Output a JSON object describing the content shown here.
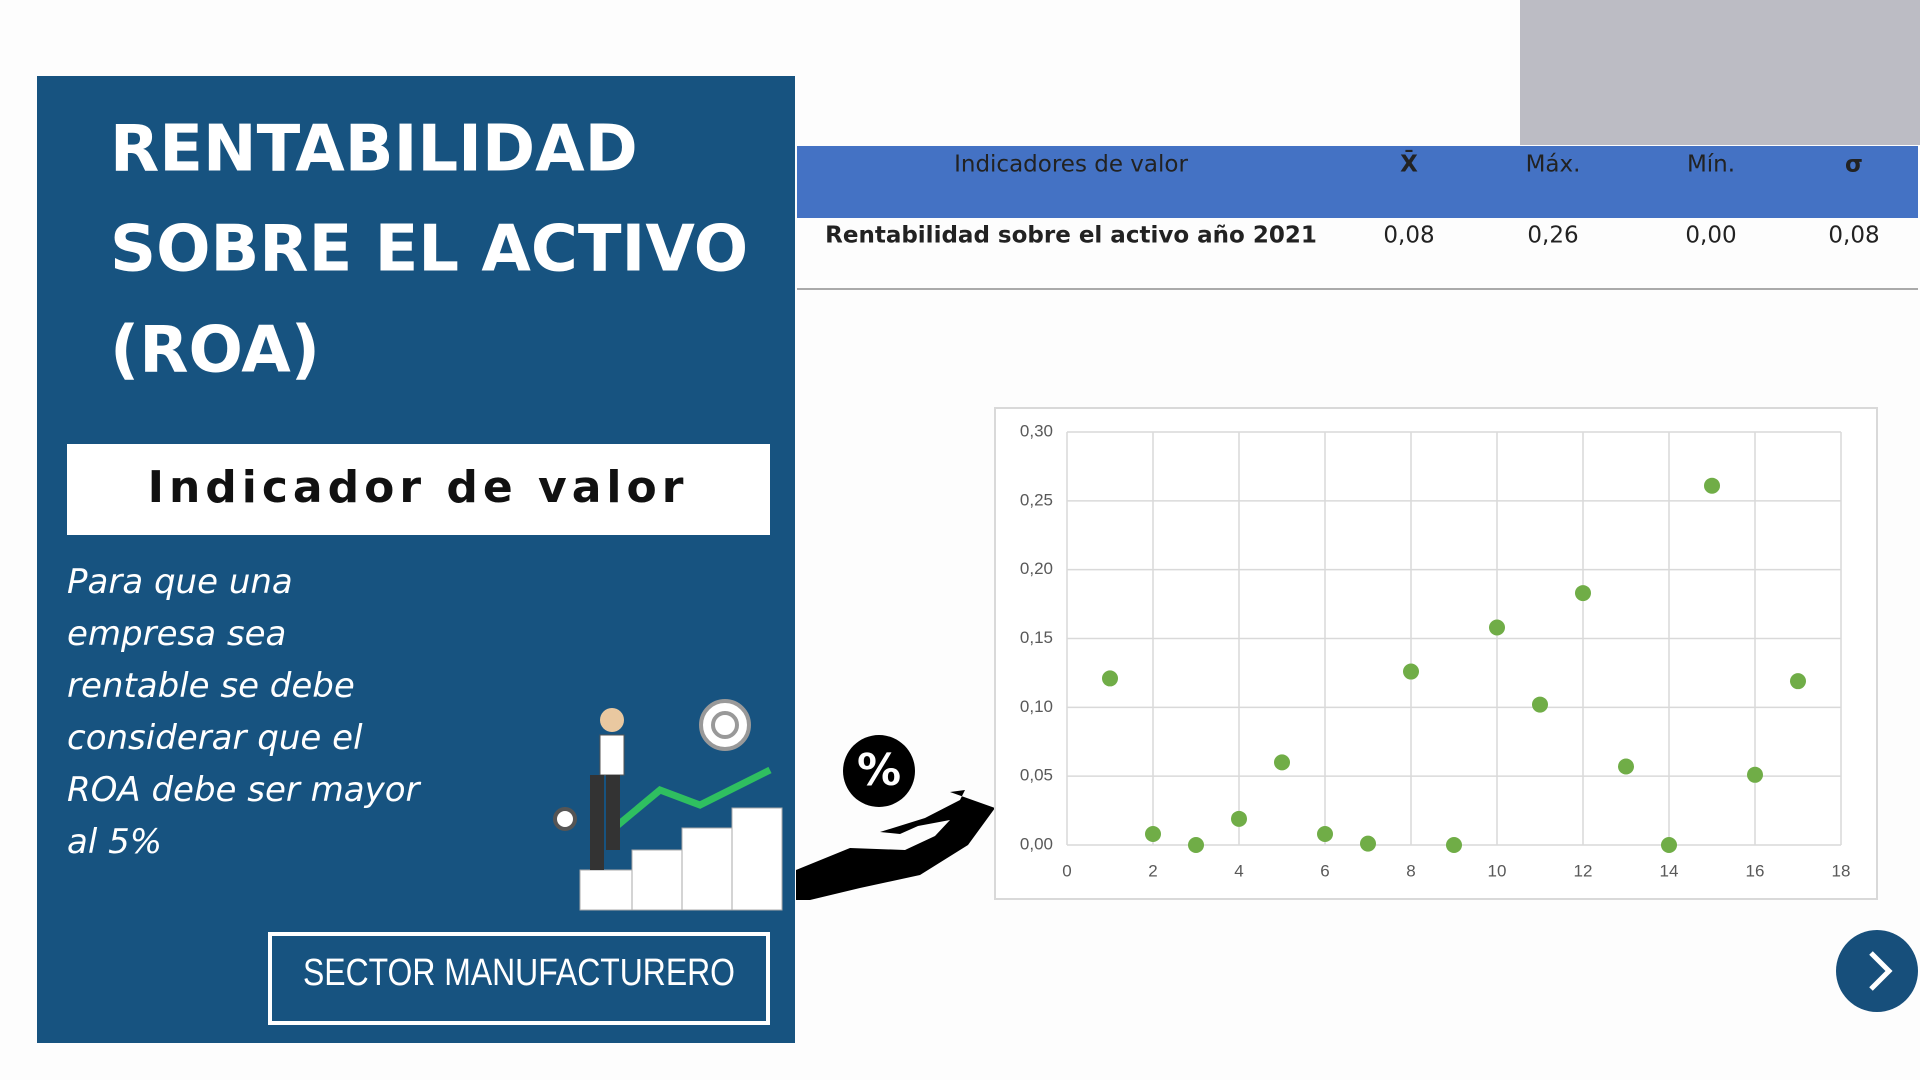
{
  "panel": {
    "title_lines": [
      "RENTABILIDAD",
      "SOBRE EL ACTIVO",
      "(ROA)"
    ],
    "subtitle": "Indicador de valor",
    "description": "Para que una empresa sea rentable se debe considerar que el ROA debe ser mayor al 5%",
    "button": "SECTOR MANUFACTURERO"
  },
  "table": {
    "header": [
      "Indicadores de valor",
      "X̄",
      "Máx.",
      "Mín.",
      "σ"
    ],
    "rows": [
      [
        "Rentabilidad sobre el activo año 2021",
        "0,08",
        "0,26",
        "0,00",
        "0,08"
      ]
    ]
  },
  "chart_data": {
    "type": "scatter",
    "x": [
      1,
      2,
      3,
      4,
      5,
      6,
      7,
      8,
      9,
      10,
      11,
      12,
      13,
      14,
      15,
      16,
      17
    ],
    "series": [
      {
        "color": "#70ad47",
        "values": [
          0.121,
          0.008,
          0.0,
          0.019,
          0.06,
          0.008,
          0.001,
          0.126,
          0.0,
          0.158,
          0.102,
          0.183,
          0.057,
          0.0,
          0.261,
          0.051,
          0.119
        ]
      }
    ],
    "xlim": [
      0,
      18
    ],
    "xticks": [
      0,
      2,
      4,
      6,
      8,
      10,
      12,
      14,
      16,
      18
    ],
    "ylim": [
      0,
      0.3
    ],
    "yticks": [
      {
        "value": 0,
        "label": "0,00"
      },
      {
        "value": 0.05,
        "label": "0,05"
      },
      {
        "value": 0.1,
        "label": "0,10"
      },
      {
        "value": 0.15,
        "label": "0,15"
      },
      {
        "value": 0.2,
        "label": "0,20"
      },
      {
        "value": 0.25,
        "label": "0,25"
      },
      {
        "value": 0.3,
        "label": "0,30"
      }
    ],
    "grid": true
  }
}
